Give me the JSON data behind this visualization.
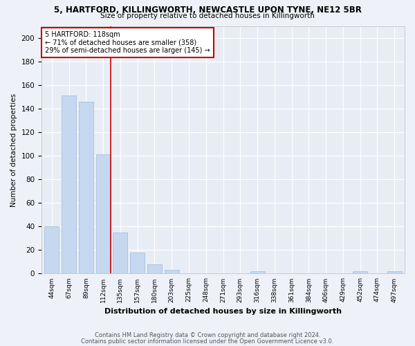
{
  "title1": "5, HARTFORD, KILLINGWORTH, NEWCASTLE UPON TYNE, NE12 5BR",
  "title2": "Size of property relative to detached houses in Killingworth",
  "xlabel": "Distribution of detached houses by size in Killingworth",
  "ylabel": "Number of detached properties",
  "categories": [
    "44sqm",
    "67sqm",
    "89sqm",
    "112sqm",
    "135sqm",
    "157sqm",
    "180sqm",
    "203sqm",
    "225sqm",
    "248sqm",
    "271sqm",
    "293sqm",
    "316sqm",
    "338sqm",
    "361sqm",
    "384sqm",
    "406sqm",
    "429sqm",
    "452sqm",
    "474sqm",
    "497sqm"
  ],
  "values": [
    40,
    151,
    146,
    101,
    35,
    18,
    8,
    3,
    0,
    0,
    0,
    0,
    2,
    0,
    0,
    0,
    0,
    0,
    2,
    0,
    2
  ],
  "bar_color": "#c5d8f0",
  "bar_edgecolor": "#a0b8d8",
  "property_label": "5 HARTFORD: 118sqm",
  "annotation_line1": "← 71% of detached houses are smaller (358)",
  "annotation_line2": "29% of semi-detached houses are larger (145) →",
  "property_bar_index": 3,
  "vline_color": "#cc0000",
  "annotation_box_edgecolor": "#cc0000",
  "footnote1": "Contains HM Land Registry data © Crown copyright and database right 2024.",
  "footnote2": "Contains public sector information licensed under the Open Government Licence v3.0.",
  "bg_color": "#eef2f8",
  "plot_bg_color": "#e8edf5",
  "ylim": [
    0,
    210
  ],
  "yticks": [
    0,
    20,
    40,
    60,
    80,
    100,
    120,
    140,
    160,
    180,
    200
  ]
}
